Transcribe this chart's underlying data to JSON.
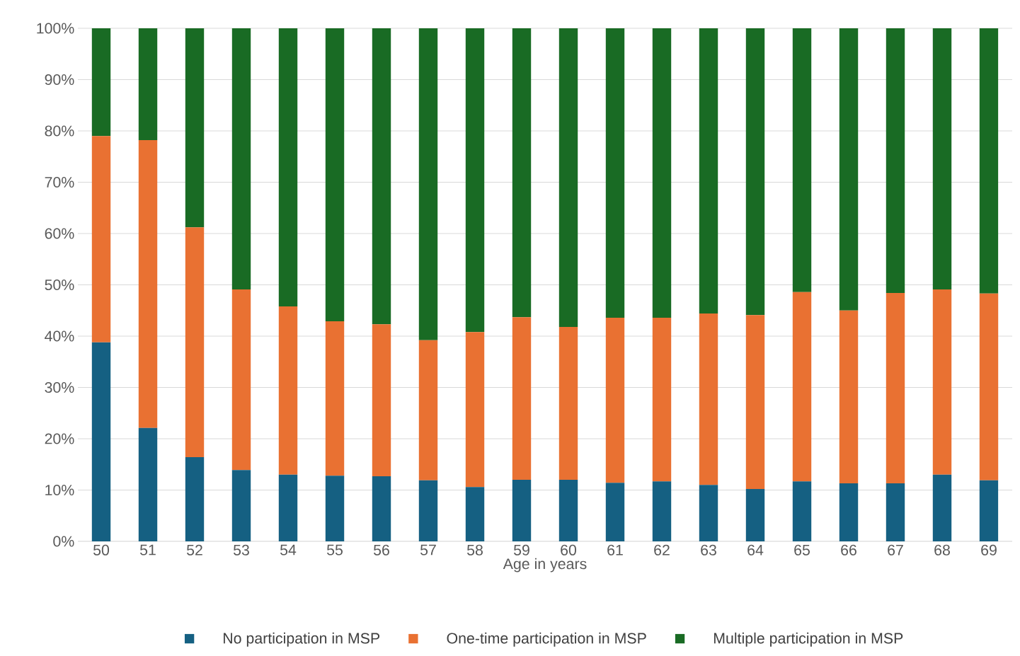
{
  "chart_data": {
    "type": "bar",
    "stacked": true,
    "xlabel": "Age in years",
    "categories": [
      "50",
      "51",
      "52",
      "53",
      "54",
      "55",
      "56",
      "57",
      "58",
      "59",
      "60",
      "61",
      "62",
      "63",
      "64",
      "65",
      "66",
      "67",
      "68",
      "69"
    ],
    "series": [
      {
        "name": "No participation in MSP",
        "color": "#156082",
        "values": [
          38.8,
          22.1,
          16.4,
          13.9,
          13.0,
          12.8,
          12.7,
          11.9,
          10.6,
          12.0,
          12.0,
          11.4,
          11.7,
          11.0,
          10.2,
          11.7,
          11.3,
          11.3,
          13.0,
          11.9
        ]
      },
      {
        "name": "One-time participation in MSP",
        "color": "#e97132",
        "values": [
          40.2,
          56.1,
          44.8,
          35.2,
          32.8,
          30.1,
          29.6,
          27.3,
          30.2,
          31.7,
          29.8,
          32.2,
          31.9,
          33.4,
          33.9,
          36.9,
          33.7,
          37.1,
          36.1,
          36.4
        ]
      },
      {
        "name": "Multiple participation in MSP",
        "color": "#196b24",
        "values": [
          21.0,
          21.8,
          38.8,
          50.9,
          54.2,
          57.1,
          57.7,
          60.8,
          59.2,
          56.3,
          58.2,
          56.4,
          56.4,
          55.6,
          55.9,
          51.4,
          55.0,
          51.6,
          50.9,
          51.7
        ]
      }
    ],
    "ylim": [
      0,
      100
    ],
    "yticks": [
      {
        "value": 0,
        "label": "0%"
      },
      {
        "value": 10,
        "label": "10%"
      },
      {
        "value": 20,
        "label": "20%"
      },
      {
        "value": 30,
        "label": "30%"
      },
      {
        "value": 40,
        "label": "40%"
      },
      {
        "value": 50,
        "label": "50%"
      },
      {
        "value": 60,
        "label": "60%"
      },
      {
        "value": 70,
        "label": "70%"
      },
      {
        "value": 80,
        "label": "80%"
      },
      {
        "value": 90,
        "label": "90%"
      },
      {
        "value": 100,
        "label": "100%"
      }
    ],
    "grid": "y",
    "legend": "bottom"
  }
}
